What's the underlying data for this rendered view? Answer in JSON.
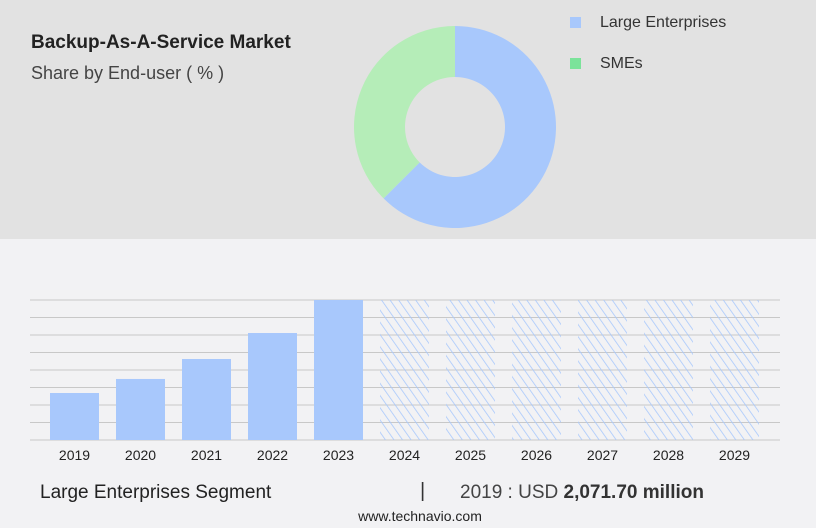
{
  "header": {
    "title": "Backup-As-A-Service Market",
    "subtitle": "Share by End-user ( % )"
  },
  "colors": {
    "large_enterprises": "#a8c8fc",
    "smes_slice": "#b5edb8",
    "smes_legend": "#7be39a",
    "bar": "#a8c8fc",
    "forecast_hatch": "#a8c8fc"
  },
  "chart_data": [
    {
      "type": "pie",
      "style": "donut",
      "legend": "top-right",
      "series": [
        {
          "name": "Large Enterprises",
          "value": 62.5
        },
        {
          "name": "SMEs",
          "value": 37.5
        }
      ]
    },
    {
      "type": "bar",
      "categories": [
        "2019",
        "2020",
        "2021",
        "2022",
        "2023",
        "2024",
        "2025",
        "2026",
        "2027",
        "2028",
        "2029"
      ],
      "values": [
        2071.7,
        2690,
        3570,
        4715,
        6170,
        null,
        null,
        null,
        null,
        null,
        null
      ],
      "forecast": [
        "2024",
        "2025",
        "2026",
        "2027",
        "2028",
        "2029"
      ],
      "ylim": [
        0,
        6170
      ],
      "grid": true,
      "xlabel": "",
      "ylabel": ""
    }
  ],
  "footer": {
    "segment": "Large Enterprises Segment",
    "separator": "|",
    "year_label": "2019 : USD",
    "value": "2,071.70 million",
    "site": "www.technavio.com"
  }
}
